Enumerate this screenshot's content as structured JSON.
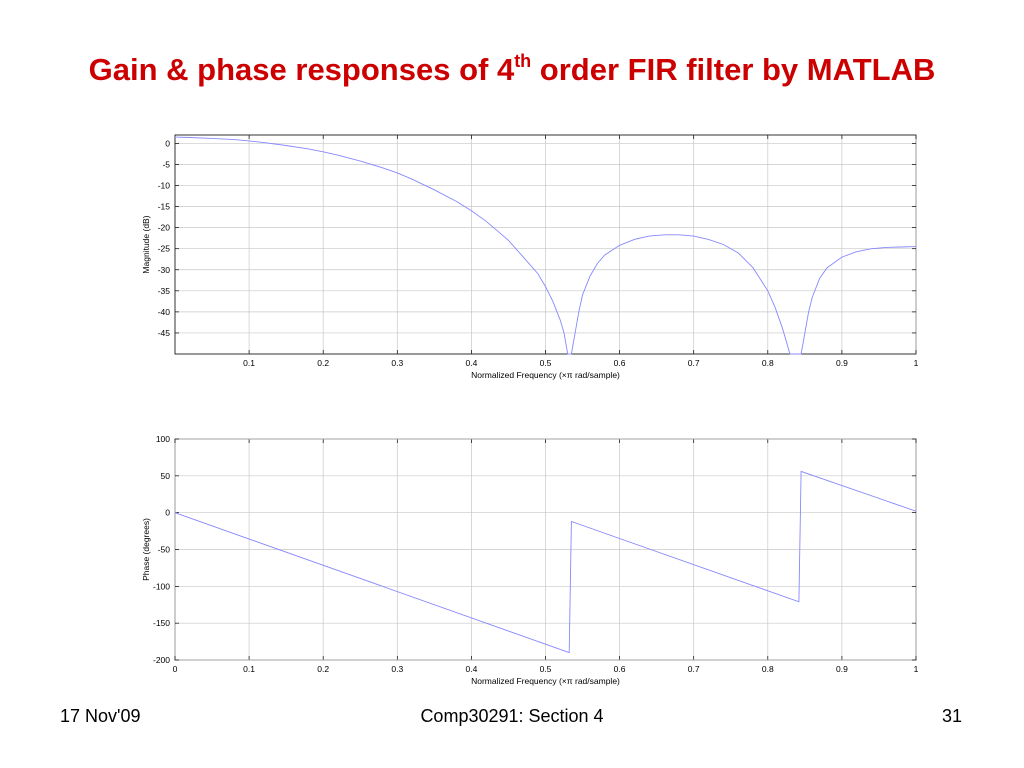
{
  "slide": {
    "title_pre": "Gain & phase responses of 4",
    "title_sup": "th",
    "title_post": " order FIR filter by MATLAB",
    "footer_left": "17 Nov'09",
    "footer_center": "Comp30291: Section 4",
    "footer_right": "31"
  },
  "chart_data": [
    {
      "type": "line",
      "xlabel": "Normalized Frequency  (×π rad/sample)",
      "ylabel": "Magnitude (dB)",
      "xlim": [
        0,
        1
      ],
      "ylim": [
        -50,
        2
      ],
      "xticks": [
        0.1,
        0.2,
        0.3,
        0.4,
        0.5,
        0.6,
        0.7,
        0.8,
        0.9,
        1
      ],
      "xtick_labels": [
        "0.1",
        "0.2",
        "0.3",
        "0.4",
        "0.5",
        "0.6",
        "0.7",
        "0.8",
        "0.9",
        "1"
      ],
      "yticks": [
        0,
        -5,
        -10,
        -15,
        -20,
        -25,
        -30,
        -35,
        -40,
        -45
      ],
      "ytick_labels": [
        "0",
        "-5",
        "-10",
        "-15",
        "-20",
        "-25",
        "-30",
        "-35",
        "-40",
        "-45"
      ],
      "grid": true,
      "color": "#8888ff",
      "series": [
        {
          "x": [
            0,
            0.02,
            0.05,
            0.08,
            0.1,
            0.12,
            0.15,
            0.18,
            0.2,
            0.22,
            0.25,
            0.28,
            0.3,
            0.32,
            0.35,
            0.38,
            0.4,
            0.42,
            0.45,
            0.47,
            0.49,
            0.5,
            0.51,
            0.52,
            0.525,
            0.53,
            0.535,
            0.54,
            0.545,
            0.55,
            0.56,
            0.57,
            0.58,
            0.6,
            0.62,
            0.64,
            0.66,
            0.68,
            0.7,
            0.72,
            0.74,
            0.76,
            0.78,
            0.8,
            0.81,
            0.82,
            0.83,
            0.835,
            0.84,
            0.845,
            0.85,
            0.855,
            0.86,
            0.87,
            0.88,
            0.9,
            0.92,
            0.94,
            0.96,
            0.98,
            1
          ],
          "y": [
            1.5,
            1.4,
            1.2,
            0.9,
            0.6,
            0.2,
            -0.5,
            -1.3,
            -2,
            -2.8,
            -4.2,
            -5.8,
            -7,
            -8.5,
            -11,
            -13.8,
            -16,
            -18.5,
            -23,
            -27,
            -31,
            -34,
            -37.5,
            -42,
            -45,
            -50,
            -50,
            -45,
            -40,
            -36,
            -31.5,
            -28.5,
            -26.5,
            -24.2,
            -22.8,
            -22,
            -21.7,
            -21.7,
            -22,
            -22.8,
            -24,
            -26,
            -29.5,
            -35,
            -39,
            -44,
            -50,
            -50,
            -50,
            -50,
            -45,
            -40,
            -36.5,
            -32,
            -29.5,
            -27,
            -25.7,
            -25,
            -24.7,
            -24.6,
            -24.5
          ]
        }
      ]
    },
    {
      "type": "line",
      "xlabel": "Normalized Frequency  (×π rad/sample)",
      "ylabel": "Phase (degrees)",
      "xlim": [
        0,
        1
      ],
      "ylim": [
        -200,
        100
      ],
      "xticks": [
        0,
        0.1,
        0.2,
        0.3,
        0.4,
        0.5,
        0.6,
        0.7,
        0.8,
        0.9,
        1
      ],
      "xtick_labels": [
        "0",
        "0.1",
        "0.2",
        "0.3",
        "0.4",
        "0.5",
        "0.6",
        "0.7",
        "0.8",
        "0.9",
        "1"
      ],
      "yticks": [
        100,
        50,
        0,
        -50,
        -100,
        -150,
        -200
      ],
      "ytick_labels": [
        "100",
        "50",
        "0",
        "-50",
        "-100",
        "-150",
        "-200"
      ],
      "grid": true,
      "color": "#8888ff",
      "series": [
        {
          "x": [
            0,
            0.532,
            0.532,
            0.535,
            0.842,
            0.842,
            0.845,
            1
          ],
          "y": [
            0,
            -190,
            -190,
            -12,
            -121,
            -121,
            56,
            2
          ]
        }
      ]
    }
  ]
}
